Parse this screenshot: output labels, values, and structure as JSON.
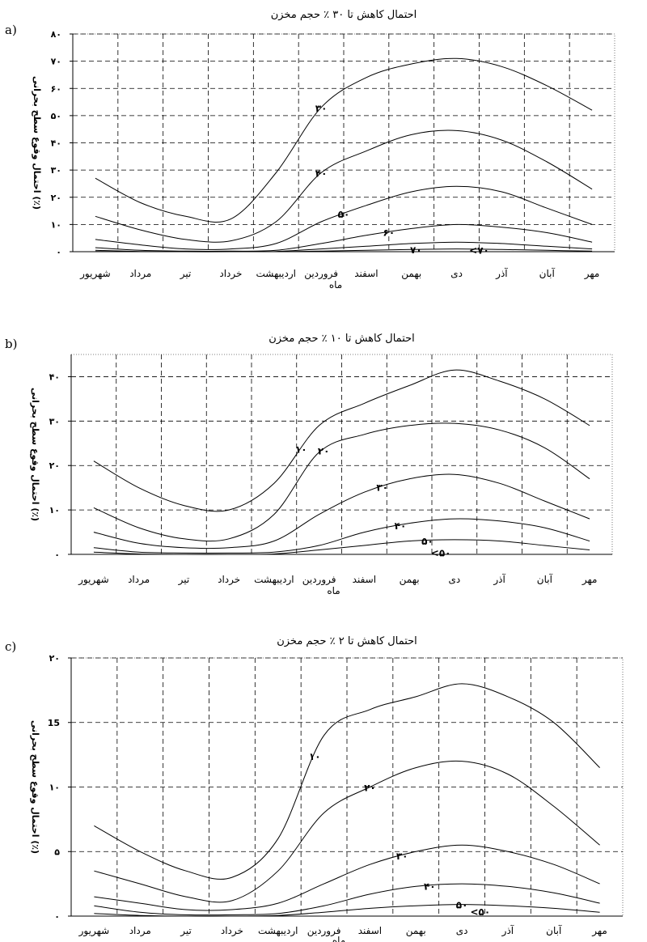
{
  "chart_data": [
    {
      "type": "line",
      "panel_label": "a)",
      "title": "احتمال کاهش تا ۳۰ ٪ حجم مخزن",
      "ylabel": "احتمال وقوع سطح بحرانی (٪)",
      "xlabel": "ماه",
      "ylim": [
        0,
        80
      ],
      "y_ticks": [
        0,
        10,
        20,
        30,
        40,
        50,
        60,
        70,
        80
      ],
      "y_tick_labels": [
        "۰",
        "۱۰",
        "۲۰",
        "۳۰",
        "۴۰",
        "۵۰",
        "۶۰",
        "۷۰",
        "۸۰"
      ],
      "categories": [
        "مهر",
        "آبان",
        "آذر",
        "دی",
        "بهمن",
        "اسفند",
        "فروردین",
        "اردیبهشت",
        "خرداد",
        "تیر",
        "مرداد",
        "شهریور"
      ],
      "grid": true,
      "series": [
        {
          "name": "۳۰",
          "label_at": 6.0,
          "values": [
            52,
            61,
            68,
            71,
            69,
            64,
            53,
            29,
            12,
            13,
            18,
            27
          ]
        },
        {
          "name": "۴۰",
          "label_at": 6.0,
          "values": [
            23,
            33,
            41,
            44.5,
            43,
            37,
            29,
            11,
            4,
            4.5,
            8,
            13
          ]
        },
        {
          "name": "۵۰",
          "label_at": 5.5,
          "values": [
            10,
            16,
            22,
            24,
            22,
            17,
            11,
            3,
            1,
            1,
            2.5,
            4.5
          ]
        },
        {
          "name": "۶۰",
          "label_at": 4.5,
          "values": [
            3.5,
            7,
            9,
            10,
            8.5,
            6,
            3,
            0.5,
            0.2,
            0.2,
            0.5,
            1.5
          ]
        },
        {
          "name": "",
          "values": [
            1,
            2,
            3,
            3.5,
            3,
            2,
            1,
            0.1,
            0,
            0,
            0.1,
            0.5
          ]
        },
        {
          "name": "۷۰",
          "label_at": 3.9,
          "values": [
            0.2,
            0.5,
            0.8,
            1,
            0.8,
            0.5,
            0.2,
            0,
            0,
            0,
            0,
            0.1
          ]
        }
      ],
      "extra_labels": [
        {
          "text": "<۷۰",
          "at": 2.5,
          "value": 0.5
        }
      ]
    },
    {
      "type": "line",
      "panel_label": "b)",
      "title": "احتمال کاهش تا ۱۰ ٪ حجم مخزن",
      "ylabel": "احتمال وقوع سطح بحرانی (٪)",
      "xlabel": "ماه",
      "ylim": [
        0,
        45
      ],
      "y_ticks": [
        0,
        10,
        20,
        30,
        40
      ],
      "y_tick_labels": [
        "۰",
        "۱۰",
        "۲۰",
        "۳۰",
        "۴۰"
      ],
      "categories": [
        "مهر",
        "آبان",
        "آذر",
        "دی",
        "بهمن",
        "اسفند",
        "فروردین",
        "اردیبهشت",
        "خرداد",
        "تیر",
        "مرداد",
        "شهریور"
      ],
      "grid": true,
      "series": [
        {
          "name": "۱۰",
          "label_at": 6.4,
          "values": [
            29,
            35,
            39,
            41.5,
            38,
            34,
            29,
            16,
            10,
            11,
            15,
            21
          ]
        },
        {
          "name": "۲۰",
          "label_at": 5.9,
          "values": [
            17,
            24,
            28,
            29.5,
            29,
            27,
            23,
            9,
            3.5,
            3.5,
            6,
            10.5
          ]
        },
        {
          "name": "۳۰",
          "label_at": 4.6,
          "values": [
            8,
            12,
            16,
            18,
            17,
            14,
            9,
            3,
            1.5,
            1.5,
            2.5,
            5
          ]
        },
        {
          "name": "۴۰",
          "label_at": 4.2,
          "values": [
            3,
            6,
            7.5,
            8,
            7,
            5,
            2,
            0.5,
            0.3,
            0.3,
            0.5,
            1.5
          ]
        },
        {
          "name": "۵۰",
          "label_at": 3.6,
          "values": [
            1,
            2,
            3,
            3.3,
            3,
            2,
            1,
            0.1,
            0,
            0,
            0.1,
            0.5
          ]
        }
      ],
      "extra_labels": [
        {
          "text": "<۵۰",
          "at": 3.3,
          "value": 0.3
        }
      ]
    },
    {
      "type": "line",
      "panel_label": "c)",
      "title": "احتمال کاهش تا ۲ ٪ حجم مخزن",
      "ylabel": "احتمال وقوع سطح بحرانی (٪)",
      "xlabel": "ماه",
      "ylim": [
        0,
        20
      ],
      "y_ticks": [
        0,
        5,
        10,
        15,
        20
      ],
      "y_tick_labels": [
        "۰",
        "۵",
        "۱۰",
        "15",
        "۲۰"
      ],
      "categories": [
        "مهر",
        "آبان",
        "آذر",
        "دی",
        "بهمن",
        "اسفند",
        "فروردین",
        "اردیبهشت",
        "خرداد",
        "تیر",
        "مرداد",
        "شهریور"
      ],
      "grid": true,
      "series": [
        {
          "name": "۱۰",
          "label_at": 6.2,
          "values": [
            11.5,
            15,
            17,
            18,
            17,
            16,
            14,
            6,
            3,
            3.5,
            5,
            7
          ]
        },
        {
          "name": "۲۰",
          "label_at": 5.0,
          "values": [
            5.5,
            8.5,
            11,
            12,
            11.5,
            10,
            8,
            3.5,
            1.2,
            1.5,
            2.5,
            3.5
          ]
        },
        {
          "name": "۳۰",
          "label_at": 4.3,
          "values": [
            2.5,
            4,
            5,
            5.5,
            5,
            4,
            2.5,
            1,
            0.5,
            0.5,
            1,
            1.5
          ]
        },
        {
          "name": "۴۰",
          "label_at": 3.7,
          "values": [
            1,
            1.8,
            2.3,
            2.5,
            2.3,
            1.7,
            0.8,
            0.2,
            0.1,
            0.1,
            0.3,
            0.8
          ]
        },
        {
          "name": "۵۰",
          "label_at": 3.0,
          "values": [
            0.3,
            0.6,
            0.8,
            0.9,
            0.8,
            0.6,
            0.3,
            0.05,
            0,
            0,
            0.05,
            0.2
          ]
        }
      ],
      "extra_labels": [
        {
          "text": "<۵۰",
          "at": 2.6,
          "value": 0.3
        }
      ]
    }
  ]
}
